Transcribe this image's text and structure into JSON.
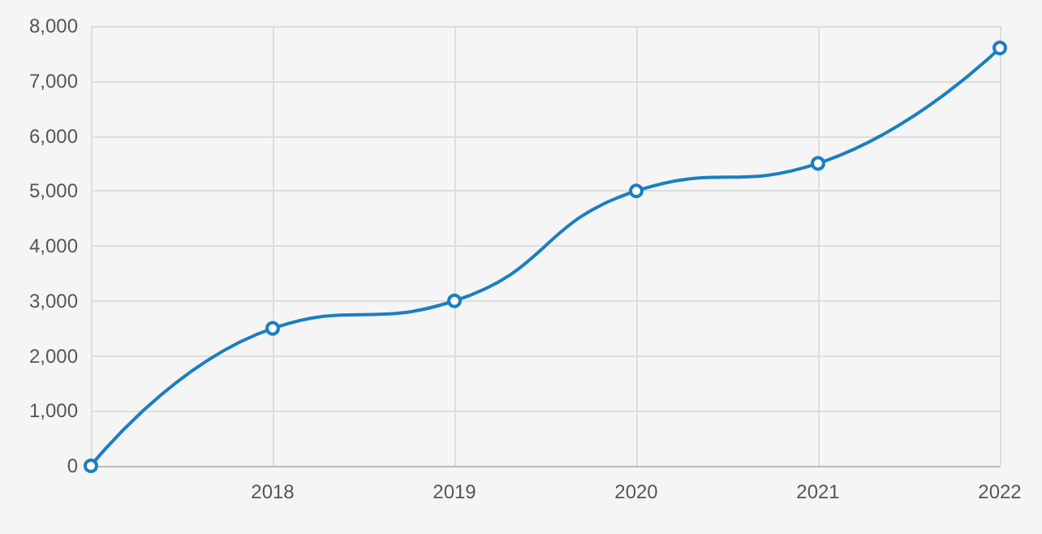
{
  "chart_data": {
    "type": "line",
    "categories": [
      null,
      "2018",
      "2019",
      "2020",
      "2021",
      "2022"
    ],
    "series": [
      {
        "color": "#1a7fc1",
        "values": [
          0,
          2500,
          3000,
          5000,
          5500,
          7600
        ]
      }
    ],
    "ylim": [
      0,
      8000
    ],
    "yticks": [
      {
        "value": 0,
        "label": "0"
      },
      {
        "value": 1000,
        "label": "1,000"
      },
      {
        "value": 2000,
        "label": "2,000"
      },
      {
        "value": 3000,
        "label": "3,000"
      },
      {
        "value": 4000,
        "label": "4,000"
      },
      {
        "value": 5000,
        "label": "5,000"
      },
      {
        "value": 6000,
        "label": "6,000"
      },
      {
        "value": 7000,
        "label": "7,000"
      },
      {
        "value": 8000,
        "label": "8,000"
      }
    ],
    "grid": true,
    "marker": "circle",
    "line_style": "solid"
  }
}
